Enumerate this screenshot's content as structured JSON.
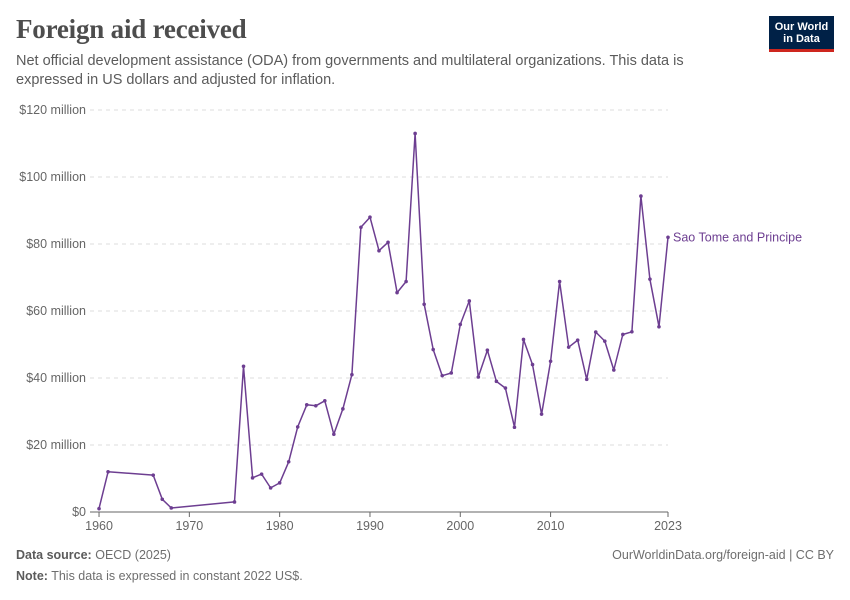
{
  "header": {
    "title": "Foreign aid received",
    "subtitle": "Net official development assistance (ODA) from governments and multilateral organizations. This data is expressed in US dollars and adjusted for inflation."
  },
  "logo": {
    "line1": "Our World",
    "line2": "in Data"
  },
  "footer": {
    "source_label": "Data source:",
    "source_value": "OECD (2025)",
    "note_label": "Note:",
    "note_value": "This data is expressed in constant 2022 US$.",
    "attribution": "OurWorldinData.org/foreign-aid | CC BY"
  },
  "colors": {
    "series": "#6d3e91",
    "grid": "#dddddd",
    "axis": "#666666"
  },
  "chart_data": {
    "type": "line",
    "title": "Foreign aid received",
    "ylim": [
      0,
      120000000
    ],
    "xlim": [
      1960,
      2023
    ],
    "y_ticks": [
      {
        "value": 0,
        "label": "$0"
      },
      {
        "value": 20000000,
        "label": "$20 million"
      },
      {
        "value": 40000000,
        "label": "$40 million"
      },
      {
        "value": 60000000,
        "label": "$60 million"
      },
      {
        "value": 80000000,
        "label": "$80 million"
      },
      {
        "value": 100000000,
        "label": "$100 million"
      },
      {
        "value": 120000000,
        "label": "$120 million"
      }
    ],
    "x_ticks": [
      {
        "value": 1960,
        "label": "1960"
      },
      {
        "value": 1970,
        "label": "1970"
      },
      {
        "value": 1980,
        "label": "1980"
      },
      {
        "value": 1990,
        "label": "1990"
      },
      {
        "value": 2000,
        "label": "2000"
      },
      {
        "value": 2010,
        "label": "2010"
      },
      {
        "value": 2023,
        "label": "2023"
      }
    ],
    "grid": "horizontal dashed",
    "series": [
      {
        "name": "Sao Tome and Principe",
        "x": [
          1960,
          1961,
          1966,
          1967,
          1968,
          1975,
          1976,
          1977,
          1978,
          1979,
          1980,
          1981,
          1982,
          1983,
          1984,
          1985,
          1986,
          1987,
          1988,
          1989,
          1990,
          1991,
          1992,
          1993,
          1994,
          1995,
          1996,
          1997,
          1998,
          1999,
          2000,
          2001,
          2002,
          2003,
          2004,
          2005,
          2006,
          2007,
          2008,
          2009,
          2010,
          2011,
          2012,
          2013,
          2014,
          2015,
          2016,
          2017,
          2018,
          2019,
          2020,
          2021,
          2022,
          2023
        ],
        "values": [
          1000000,
          12000000,
          11000000,
          3800000,
          1200000,
          3000000,
          43500000,
          10200000,
          11300000,
          7200000,
          8700000,
          15000000,
          25400000,
          32000000,
          31700000,
          33200000,
          23200000,
          30800000,
          41000000,
          85000000,
          88000000,
          78000000,
          80500000,
          65500000,
          68800000,
          113000000,
          62000000,
          48500000,
          40700000,
          41500000,
          56000000,
          63000000,
          40300000,
          48300000,
          39000000,
          37000000,
          25300000,
          51500000,
          44000000,
          29200000,
          45000000,
          68800000,
          49200000,
          51300000,
          39600000,
          53700000,
          51000000,
          42400000,
          53000000,
          53800000,
          94300000,
          69500000,
          55300000,
          82000000
        ]
      }
    ]
  }
}
